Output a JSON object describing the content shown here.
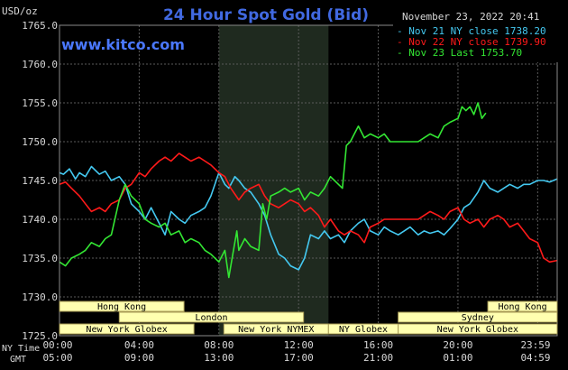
{
  "header": {
    "title": "24 Hour Spot Gold (Bid)",
    "site": "www.kitco.com",
    "y_unit": "USD/oz",
    "timestamp": "November 23, 2022 20:41"
  },
  "colors": {
    "background": "#000000",
    "title": "#4169e1",
    "site": "#4a78ff",
    "nov21": "#44c8f0",
    "nov22": "#ff1a1a",
    "nov23": "#33e633",
    "grid": "#5a5a5a",
    "market_bar": "#ffffb0",
    "market_border": "#a89b56",
    "market_text": "#000000",
    "text": "#d8d8d8"
  },
  "legend": [
    {
      "key": "nov21",
      "label": "Nov 21 NY close 1738.20"
    },
    {
      "key": "nov22",
      "label": "Nov 22 NY close 1739.90"
    },
    {
      "key": "nov23",
      "label": "Nov 23 Last 1753.70"
    }
  ],
  "axis_titles": {
    "ny": "NY Time",
    "gmt": "GMT"
  },
  "markets": [
    {
      "name": "Hong Kong",
      "start": 0.0,
      "end": 6.25
    },
    {
      "name": "Hong Kong",
      "start": 21.5,
      "end": 24.98
    },
    {
      "name": "London",
      "start": 3.0,
      "end": 12.25
    },
    {
      "name": "New York NYMEX",
      "start": 8.25,
      "end": 13.5
    },
    {
      "name": "NY Globex",
      "start": 13.5,
      "end": 17.0
    },
    {
      "name": "Sydney",
      "start": 17.0,
      "end": 24.98
    },
    {
      "name": "New York Globex",
      "start": 0.0,
      "end": 6.75
    },
    {
      "name": "New York Globex",
      "start": 17.0,
      "end": 24.98
    }
  ],
  "chart_data": {
    "type": "line",
    "title": "24 Hour Spot Gold (Bid)",
    "ylabel": "USD/oz",
    "xlim": [
      0,
      24.98
    ],
    "ylim": [
      1725,
      1765
    ],
    "x_ticks": [
      {
        "x": 0,
        "ny": "00:00",
        "gmt": "05:00"
      },
      {
        "x": 4,
        "ny": "04:00",
        "gmt": "09:00"
      },
      {
        "x": 8,
        "ny": "08:00",
        "gmt": "13:00"
      },
      {
        "x": 12,
        "ny": "12:00",
        "gmt": "17:00"
      },
      {
        "x": 16,
        "ny": "16:00",
        "gmt": "21:00"
      },
      {
        "x": 20,
        "ny": "20:00",
        "gmt": "01:00"
      },
      {
        "x": 24,
        "ny": "23:59",
        "gmt": "04:59"
      }
    ],
    "y_ticks": [
      "1725.0",
      "1730.0",
      "1735.0",
      "1740.0",
      "1745.0",
      "1750.0",
      "1755.0",
      "1760.0",
      "1765.0"
    ],
    "highlight_x_range": [
      8.0,
      13.5
    ],
    "grid": true,
    "legend_position": "top-right",
    "series": [
      {
        "name": "Nov 21 NY close 1738.20",
        "color_key": "nov21",
        "x": [
          0,
          0.2,
          0.5,
          0.8,
          1.0,
          1.3,
          1.6,
          2.0,
          2.3,
          2.6,
          3.0,
          3.3,
          3.6,
          4.0,
          4.3,
          4.6,
          5.0,
          5.3,
          5.6,
          6.0,
          6.3,
          6.6,
          7.0,
          7.3,
          7.6,
          8.0,
          8.3,
          8.5,
          8.8,
          9.0,
          9.3,
          9.6,
          10.0,
          10.3,
          10.6,
          11.0,
          11.3,
          11.6,
          12.0,
          12.3,
          12.6,
          13.0,
          13.3,
          13.6,
          14.0,
          14.3,
          14.6,
          15.0,
          15.3,
          15.6,
          16.0,
          16.3,
          16.6,
          17.0,
          17.3,
          17.6,
          18.0,
          18.3,
          18.6,
          19.0,
          19.3,
          19.6,
          20.0,
          20.3,
          20.6,
          21.0,
          21.3,
          21.6,
          22.0,
          22.3,
          22.6,
          23.0,
          23.3,
          23.6,
          24.0,
          24.3,
          24.6,
          24.98
        ],
        "y": [
          1746.0,
          1745.8,
          1746.5,
          1745.2,
          1746.0,
          1745.5,
          1746.8,
          1745.8,
          1746.2,
          1745.0,
          1745.5,
          1744.5,
          1742.0,
          1741.0,
          1740.0,
          1741.5,
          1739.5,
          1738.0,
          1741.0,
          1740.0,
          1739.5,
          1740.5,
          1741.0,
          1741.5,
          1743.0,
          1746.0,
          1744.5,
          1744.0,
          1745.5,
          1745.0,
          1744.0,
          1743.5,
          1742.0,
          1740.5,
          1738.0,
          1735.5,
          1735.0,
          1734.0,
          1733.5,
          1735.0,
          1738.0,
          1737.5,
          1738.5,
          1737.5,
          1738.0,
          1737.0,
          1738.5,
          1739.5,
          1740.0,
          1738.5,
          1738.0,
          1739.0,
          1738.5,
          1738.0,
          1738.5,
          1739.0,
          1738.0,
          1738.5,
          1738.2,
          1738.5,
          1738.0,
          1738.8,
          1740.0,
          1741.5,
          1742.0,
          1743.5,
          1745.0,
          1744.0,
          1743.5,
          1744.0,
          1744.5,
          1744.0,
          1744.5,
          1744.5,
          1745.0,
          1745.0,
          1744.8,
          1745.2
        ]
      },
      {
        "name": "Nov 22 NY close 1739.90",
        "color_key": "nov22",
        "x": [
          0,
          0.3,
          0.6,
          1.0,
          1.3,
          1.6,
          2.0,
          2.3,
          2.6,
          3.0,
          3.3,
          3.6,
          4.0,
          4.3,
          4.6,
          5.0,
          5.3,
          5.6,
          6.0,
          6.3,
          6.6,
          7.0,
          7.3,
          7.6,
          8.0,
          8.3,
          8.6,
          9.0,
          9.3,
          9.6,
          10.0,
          10.3,
          10.6,
          11.0,
          11.3,
          11.6,
          12.0,
          12.3,
          12.6,
          13.0,
          13.3,
          13.6,
          14.0,
          14.3,
          14.6,
          15.0,
          15.3,
          15.6,
          16.0,
          16.3,
          16.6,
          17.0,
          17.3,
          17.6,
          18.0,
          18.3,
          18.6,
          19.0,
          19.3,
          19.6,
          20.0,
          20.3,
          20.6,
          21.0,
          21.3,
          21.6,
          22.0,
          22.3,
          22.6,
          23.0,
          23.3,
          23.6,
          24.0,
          24.3,
          24.6,
          24.98
        ],
        "y": [
          1744.5,
          1744.8,
          1744.0,
          1743.0,
          1742.0,
          1741.0,
          1741.5,
          1741.0,
          1742.0,
          1742.5,
          1744.0,
          1744.5,
          1746.0,
          1745.5,
          1746.5,
          1747.5,
          1748.0,
          1747.5,
          1748.5,
          1748.0,
          1747.5,
          1748.0,
          1747.5,
          1747.0,
          1746.0,
          1745.5,
          1744.0,
          1742.5,
          1743.5,
          1744.0,
          1744.5,
          1743.0,
          1742.0,
          1741.5,
          1742.0,
          1742.5,
          1742.0,
          1741.0,
          1741.5,
          1740.5,
          1739.0,
          1740.0,
          1738.5,
          1738.0,
          1738.5,
          1738.0,
          1737.0,
          1739.0,
          1739.5,
          1740.0,
          1740.0,
          1740.0,
          1740.0,
          1740.0,
          1740.0,
          1740.5,
          1741.0,
          1740.5,
          1740.0,
          1741.0,
          1741.5,
          1740.0,
          1739.5,
          1740.0,
          1739.0,
          1740.0,
          1740.5,
          1740.0,
          1739.0,
          1739.5,
          1738.5,
          1737.5,
          1737.0,
          1735.0,
          1734.5,
          1734.7
        ]
      },
      {
        "name": "Nov 23 Last 1753.70",
        "color_key": "nov23",
        "x": [
          0,
          0.3,
          0.6,
          1.0,
          1.3,
          1.6,
          2.0,
          2.3,
          2.6,
          3.0,
          3.3,
          3.6,
          4.0,
          4.3,
          4.6,
          5.0,
          5.3,
          5.6,
          6.0,
          6.3,
          6.6,
          7.0,
          7.3,
          7.6,
          8.0,
          8.3,
          8.5,
          8.7,
          8.9,
          9.0,
          9.3,
          9.6,
          10.0,
          10.2,
          10.4,
          10.6,
          11.0,
          11.3,
          11.6,
          12.0,
          12.3,
          12.6,
          13.0,
          13.3,
          13.6,
          14.0,
          14.2,
          14.4,
          14.6,
          14.8,
          15.0,
          15.3,
          15.6,
          16.0,
          16.3,
          16.6,
          17.0,
          17.3,
          17.6,
          18.0,
          18.3,
          18.6,
          19.0,
          19.3,
          19.6,
          20.0,
          20.2,
          20.4,
          20.6,
          20.8,
          21.0,
          21.2,
          21.4
        ],
        "y": [
          1734.5,
          1734.0,
          1735.0,
          1735.5,
          1736.0,
          1737.0,
          1736.5,
          1737.5,
          1738.0,
          1742.5,
          1744.5,
          1743.0,
          1742.0,
          1740.0,
          1739.5,
          1739.0,
          1739.5,
          1738.0,
          1738.5,
          1737.0,
          1737.5,
          1737.0,
          1736.0,
          1735.5,
          1734.5,
          1736.0,
          1732.5,
          1735.5,
          1738.5,
          1736.0,
          1737.5,
          1736.5,
          1736.0,
          1742.0,
          1740.0,
          1743.0,
          1743.5,
          1744.0,
          1743.5,
          1744.0,
          1742.5,
          1743.5,
          1743.0,
          1744.0,
          1745.5,
          1744.5,
          1744.0,
          1749.5,
          1750.0,
          1751.0,
          1752.0,
          1750.5,
          1751.0,
          1750.5,
          1751.0,
          1750.0,
          1750.0,
          1750.0,
          1750.0,
          1750.0,
          1750.5,
          1751.0,
          1750.5,
          1752.0,
          1752.5,
          1753.0,
          1754.5,
          1754.0,
          1754.5,
          1753.5,
          1755.0,
          1753.0,
          1753.7
        ]
      }
    ]
  }
}
